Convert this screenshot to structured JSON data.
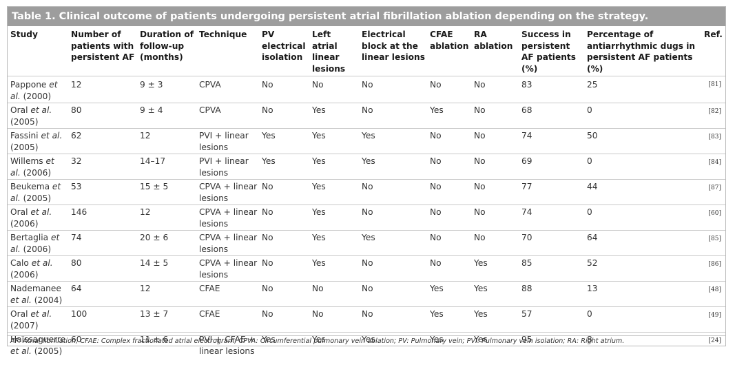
{
  "title": "Table 1. Clinical outcome of patients undergoing persistent atrial fibrillation ablation depending on the strategy.",
  "headers": [
    "Study",
    "Number of patients with persistent AF",
    "Duration of follow-up (months)",
    "Technique",
    "PV electrical isolation",
    "Left atrial linear lesions",
    "Electrical block at the linear lesions",
    "CFAE ablation",
    "RA ablation",
    "Success in persistent AF patients (%)",
    "Percentage of antiarrhythmic dugs in persistent AF patients (%)",
    "Ref."
  ],
  "rows": [
    {
      "author": "Pappone",
      "etal": "et al.",
      "year": "(2000)",
      "n": "12",
      "duration": "9 ± 3",
      "technique": "CPVA",
      "pv": "No",
      "la": "No",
      "block": "No",
      "cfae": "No",
      "ra": "No",
      "success": "83",
      "aad": "25",
      "ref": "[81]"
    },
    {
      "author": "Oral",
      "etal": "et al.",
      "year": "(2005)",
      "n": "80",
      "duration": "9 ± 4",
      "technique": "CPVA",
      "pv": "No",
      "la": "Yes",
      "block": "No",
      "cfae": "Yes",
      "ra": "No",
      "success": "68",
      "aad": "0",
      "ref": "[82]"
    },
    {
      "author": "Fassini",
      "etal": "et al.",
      "year": "(2005)",
      "n": "62",
      "duration": "12",
      "technique": "PVI + linear lesions",
      "pv": "Yes",
      "la": "Yes",
      "block": "Yes",
      "cfae": "No",
      "ra": "No",
      "success": "74",
      "aad": "50",
      "ref": "[83]"
    },
    {
      "author": "Willems",
      "etal": "et al.",
      "year": "(2006)",
      "n": "32",
      "duration": "14–17",
      "technique": "PVI + linear lesions",
      "pv": "Yes",
      "la": "Yes",
      "block": "Yes",
      "cfae": "No",
      "ra": "No",
      "success": "69",
      "aad": "0",
      "ref": "[84]"
    },
    {
      "author": "Beukema",
      "etal": "et al.",
      "year": "(2005)",
      "n": "53",
      "duration": "15 ± 5",
      "technique": "CPVA + linear lesions",
      "pv": "No",
      "la": "Yes",
      "block": "No",
      "cfae": "No",
      "ra": "No",
      "success": "77",
      "aad": "44",
      "ref": "[87]"
    },
    {
      "author": "Oral",
      "etal": "et al.",
      "year": "(2006)",
      "n": "146",
      "duration": "12",
      "technique": "CPVA + linear lesions",
      "pv": "No",
      "la": "Yes",
      "block": "No",
      "cfae": "No",
      "ra": "No",
      "success": "74",
      "aad": "0",
      "ref": "[60]"
    },
    {
      "author": "Bertaglia",
      "etal": "et al.",
      "year": "(2006)",
      "n": "74",
      "duration": "20 ± 6",
      "technique": "CPVA + linear lesions",
      "pv": "No",
      "la": "Yes",
      "block": "Yes",
      "cfae": "No",
      "ra": "No",
      "success": "70",
      "aad": "64",
      "ref": "[85]"
    },
    {
      "author": "Calo",
      "etal": "et al.",
      "year": "(2006)",
      "n": "80",
      "duration": "14 ± 5",
      "technique": "CPVA + linear lesions",
      "pv": "No",
      "la": "Yes",
      "block": "No",
      "cfae": "No",
      "ra": "Yes",
      "success": "85",
      "aad": "52",
      "ref": "[86]"
    },
    {
      "author": "Nademanee",
      "etal": "et al.",
      "year": "(2004)",
      "n": "64",
      "duration": "12",
      "technique": "CFAE",
      "pv": "No",
      "la": "No",
      "block": "No",
      "cfae": "Yes",
      "ra": "Yes",
      "success": "88",
      "aad": "13",
      "ref": "[48]"
    },
    {
      "author": "Oral",
      "etal": "et al.",
      "year": "(2007)",
      "n": "100",
      "duration": "13 ± 7",
      "technique": "CFAE",
      "pv": "No",
      "la": "No",
      "block": "No",
      "cfae": "Yes",
      "ra": "Yes",
      "success": "57",
      "aad": "0",
      "ref": "[49]"
    },
    {
      "author": "Haïssaguerre",
      "etal": "et al.",
      "year": "(2005)",
      "n": "60",
      "duration": "11 ± 6",
      "technique": "PVI + CFAE + linear lesions",
      "pv": "Yes",
      "la": "Yes",
      "block": "Yes",
      "cfae": "Yes",
      "ra": "Yes",
      "success": "95",
      "aad": "8",
      "ref": "[24]"
    }
  ],
  "footnote": "AF: Atrial fibrillation; CFAE: Complex fractionated atrial electrogram; CPVA: Circumferential pulmonary vein ablation; PV: Pulmonary vein; PVI: Pulmonary vein isolation; RA: Right atrium."
}
